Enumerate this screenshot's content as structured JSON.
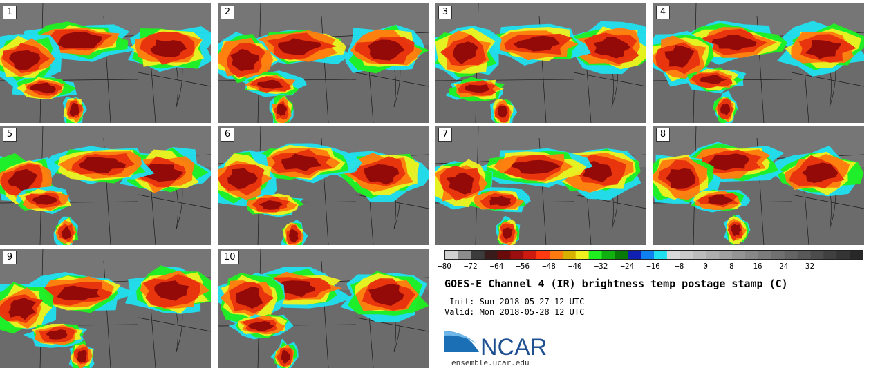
{
  "panels": [
    {
      "label": "1"
    },
    {
      "label": "2"
    },
    {
      "label": "3"
    },
    {
      "label": "4"
    },
    {
      "label": "5"
    },
    {
      "label": "6"
    },
    {
      "label": "7"
    },
    {
      "label": "8"
    },
    {
      "label": "9"
    },
    {
      "label": "10"
    }
  ],
  "colorbar": {
    "tick_labels": [
      "−80",
      "−72",
      "−64",
      "−56",
      "−48",
      "−40",
      "−32",
      "−24",
      "−16",
      "−8",
      "0",
      "8",
      "16",
      "24",
      "32"
    ],
    "colors": [
      "#d0d0d0",
      "#8c8c8c",
      "#3c3c3c",
      "#3a1b1b",
      "#6b0a0a",
      "#9a0f0f",
      "#cc1a10",
      "#ff3a10",
      "#ff7a10",
      "#d8b000",
      "#f0f020",
      "#20f020",
      "#10b010",
      "#087a08",
      "#1020b0",
      "#1080f0",
      "#20e0f0",
      "#d8d8d8",
      "#cacaca",
      "#bcbcbc",
      "#aeaeae",
      "#a0a0a0",
      "#949494",
      "#888888",
      "#7c7c7c",
      "#707070",
      "#646464",
      "#585858",
      "#4c4c4c",
      "#404040",
      "#343434",
      "#282828"
    ]
  },
  "title": "GOES-E Channel 4 (IR) brightness temp postage stamp (C)",
  "init_line": " Init: Sun 2018-05-27 12 UTC",
  "valid_line": "Valid: Mon 2018-05-28 12 UTC",
  "logo_text": "NCAR",
  "logo_url": "ensemble.ucar.edu"
}
